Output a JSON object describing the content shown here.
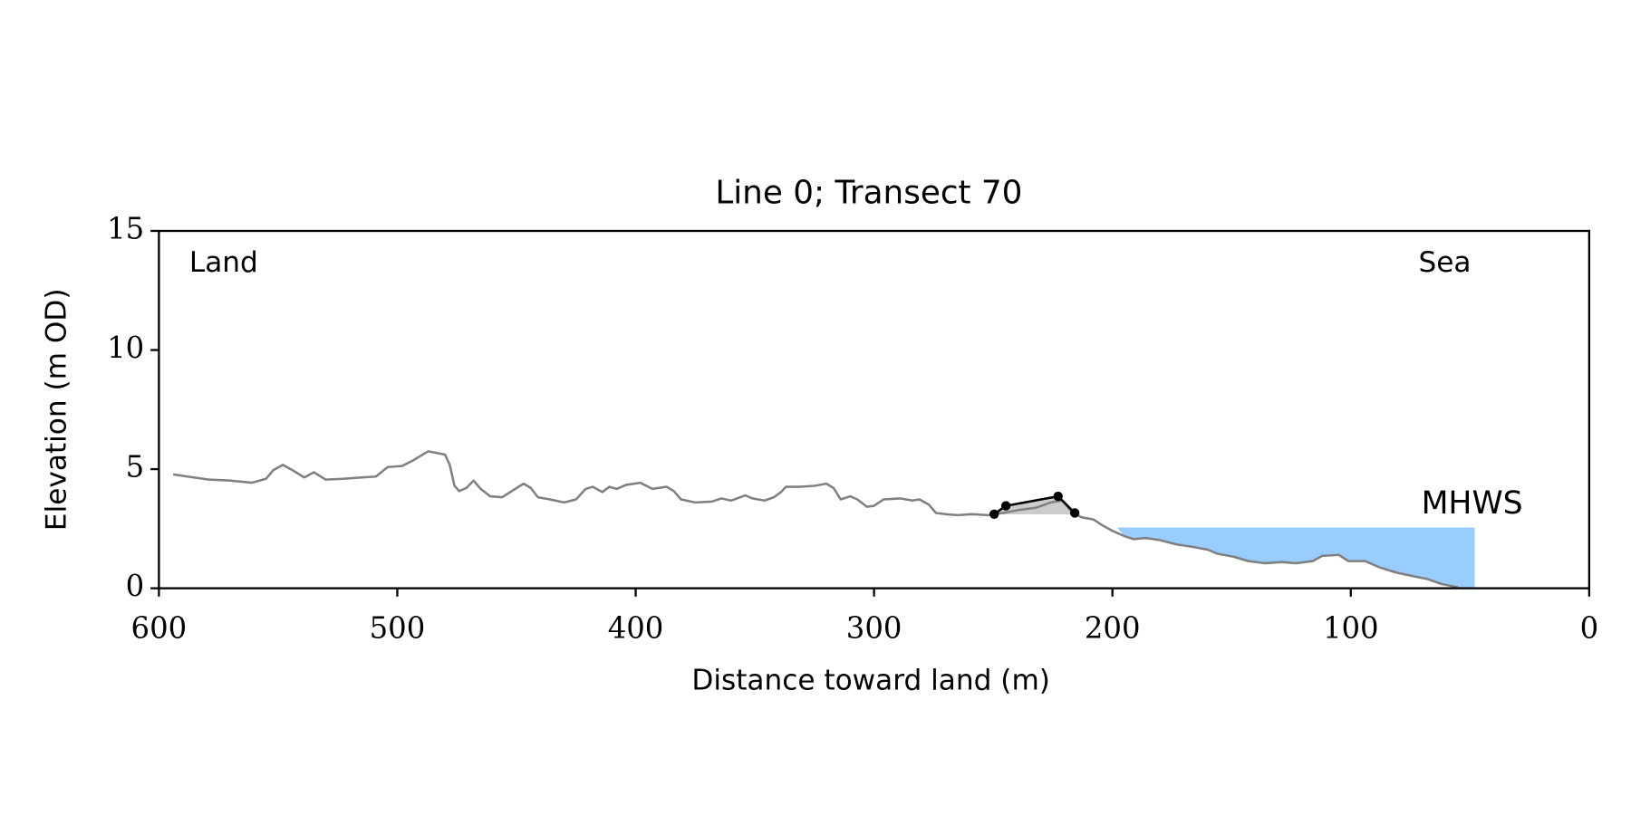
{
  "chart_data": {
    "type": "line",
    "title": "Line 0; Transect 70",
    "xlabel": "Distance toward land (m)",
    "ylabel": "Elevation (m OD)",
    "xlim": [
      600,
      0
    ],
    "ylim": [
      0,
      15
    ],
    "xticks": [
      600,
      500,
      400,
      300,
      200,
      100,
      0
    ],
    "yticks": [
      0,
      5,
      10,
      15
    ],
    "annotations": {
      "land": "Land",
      "sea": "Sea"
    },
    "mhws": {
      "label": "MHWS",
      "level": 2.55,
      "x": [
        198,
        48
      ],
      "color": "#99ccff",
      "label_color": "#6699cc"
    },
    "crest_fill": {
      "base": 3.1,
      "color": "#cccccc"
    },
    "series": [
      {
        "color": "#808080",
        "marker": false,
        "x": [
          594,
          588,
          579,
          570,
          561,
          555,
          552,
          548,
          544,
          539,
          535,
          530,
          522,
          515,
          509,
          504,
          498,
          493,
          487,
          480,
          478,
          476,
          474,
          471,
          468,
          465,
          461,
          456,
          452,
          447,
          444,
          441,
          436,
          430,
          425,
          421,
          418,
          414,
          411,
          408,
          404,
          398,
          393,
          387,
          384,
          381,
          375,
          368,
          364,
          360,
          354,
          351,
          346,
          342,
          339,
          337,
          331,
          325,
          320,
          317,
          314,
          310,
          307,
          303,
          300,
          296,
          289,
          284,
          281,
          277,
          274,
          270,
          265,
          259,
          252,
          246,
          239,
          232,
          226,
          221,
          217,
          213,
          208,
          204,
          200,
          195,
          191,
          186,
          180,
          173,
          167,
          160,
          156,
          149,
          143,
          136,
          129,
          123,
          116,
          112,
          105,
          101,
          94,
          88,
          81,
          75,
          68,
          62,
          55
        ],
        "values": [
          4.78,
          4.69,
          4.56,
          4.52,
          4.43,
          4.6,
          4.96,
          5.18,
          4.96,
          4.65,
          4.87,
          4.56,
          4.6,
          4.65,
          4.69,
          5.09,
          5.13,
          5.39,
          5.75,
          5.61,
          5.18,
          4.3,
          4.08,
          4.21,
          4.52,
          4.17,
          3.86,
          3.82,
          4.08,
          4.39,
          4.21,
          3.82,
          3.73,
          3.6,
          3.73,
          4.17,
          4.26,
          4.04,
          4.26,
          4.17,
          4.34,
          4.43,
          4.17,
          4.26,
          4.08,
          3.73,
          3.6,
          3.64,
          3.77,
          3.68,
          3.9,
          3.77,
          3.68,
          3.82,
          4.04,
          4.26,
          4.26,
          4.3,
          4.39,
          4.21,
          3.73,
          3.86,
          3.73,
          3.42,
          3.46,
          3.73,
          3.77,
          3.68,
          3.73,
          3.51,
          3.16,
          3.11,
          3.07,
          3.11,
          3.07,
          3.16,
          3.29,
          3.38,
          3.6,
          3.68,
          3.2,
          2.98,
          2.89,
          2.63,
          2.41,
          2.19,
          2.06,
          2.11,
          2.02,
          1.84,
          1.75,
          1.62,
          1.45,
          1.32,
          1.14,
          1.05,
          1.1,
          1.05,
          1.14,
          1.36,
          1.4,
          1.14,
          1.14,
          0.88,
          0.66,
          0.53,
          0.39,
          0.18,
          0.04
        ]
      },
      {
        "color": "#000000",
        "marker": true,
        "x": [
          249.6,
          244.7,
          222.8,
          215.8
        ],
        "values": [
          3.11,
          3.46,
          3.86,
          3.16
        ]
      }
    ]
  }
}
